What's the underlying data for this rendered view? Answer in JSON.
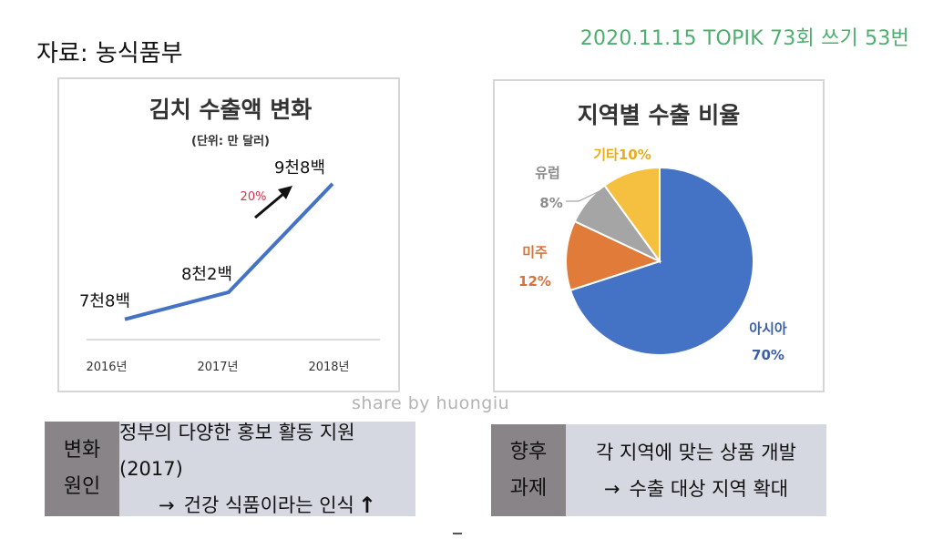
{
  "source": "자료:  농식품부",
  "header_right": "2020.11.15 TOPIK 73회 쓰기 53번",
  "watermark": "share by huongiu",
  "colors": {
    "line": "#4472c4",
    "arrow_label": "#e0304a",
    "asia": "#4472c4",
    "america": "#e07b39",
    "europe": "#a5a5a5",
    "other": "#f5c040",
    "header_green": "#4caf6e"
  },
  "chart_data": [
    {
      "type": "line",
      "title": "김치 수출액 변화",
      "subtitle": "(단위: 만 달러)",
      "x": [
        "2016년",
        "2017년",
        "2018년"
      ],
      "series": [
        {
          "values": [
            7800,
            8200,
            9800
          ],
          "labels": [
            "7천8백",
            "8천2백",
            "9천8백"
          ]
        }
      ],
      "annotations": [
        {
          "text": "20%",
          "icon": "up-right-arrow-icon"
        }
      ],
      "ylim": [
        7500,
        10000
      ]
    },
    {
      "type": "pie",
      "title": "지역별 수출 비율",
      "slices": [
        {
          "name": "아시아",
          "value": 70,
          "label": "70%",
          "color": "#4472c4"
        },
        {
          "name": "미주",
          "value": 12,
          "label": "12%",
          "color": "#e07b39"
        },
        {
          "name": "유럽",
          "value": 8,
          "label": "8%",
          "color": "#a5a5a5"
        },
        {
          "name": "기타",
          "value": 10,
          "label": "기타10%",
          "color": "#f5c040"
        }
      ]
    }
  ],
  "boxes": {
    "left": {
      "tag_lines": [
        "변화",
        "원인"
      ],
      "line1": "정부의 다양한 홍보 활동 지원 (2017)",
      "arrow": "→",
      "line2": "건강 식품이라는 인식",
      "up": "↑"
    },
    "right": {
      "tag_lines": [
        "향후",
        "과제"
      ],
      "line1": "각 지역에 맞는 상품 개발",
      "arrow": "→",
      "line2": "수출 대상 지역 확대"
    }
  }
}
